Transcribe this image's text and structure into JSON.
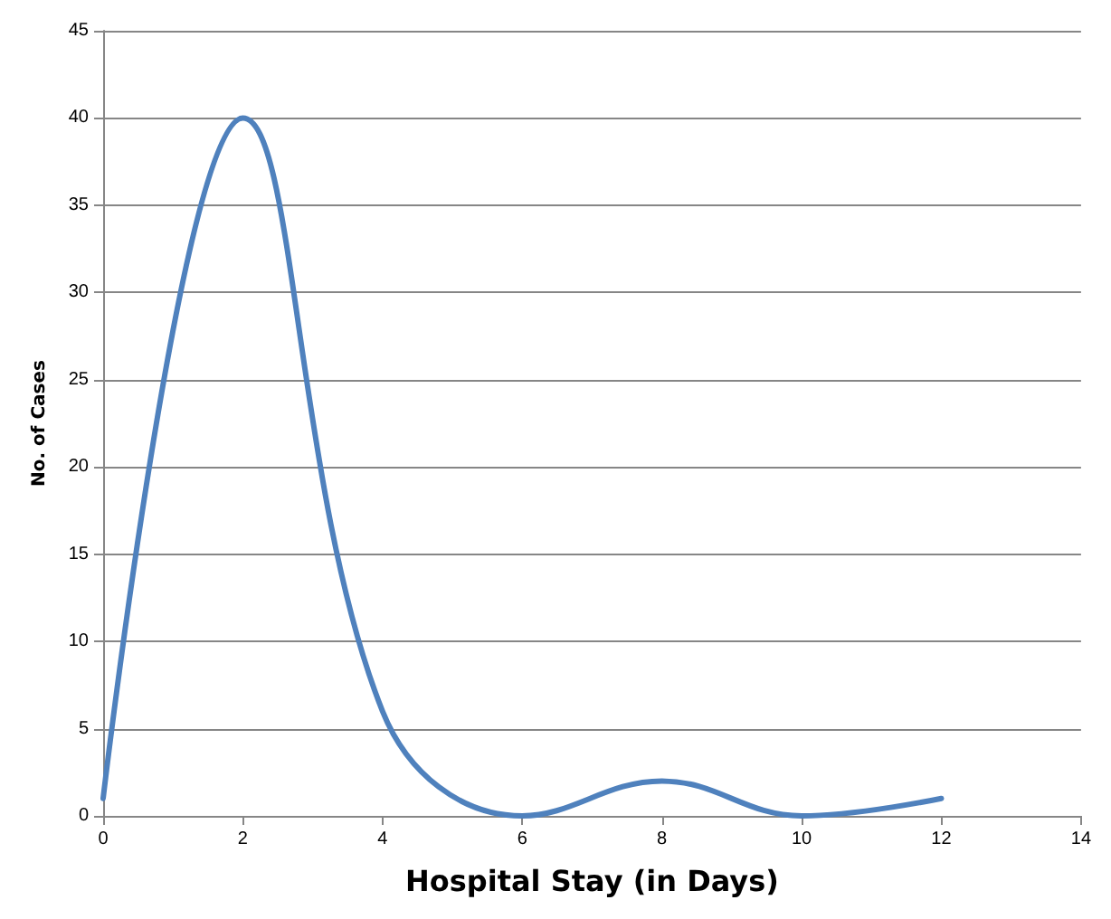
{
  "chart_data": {
    "type": "line",
    "xlabel": "Hospital Stay (in Days)",
    "ylabel": "No. of Cases",
    "x": [
      0,
      2,
      4,
      6,
      8,
      10,
      12
    ],
    "series": [
      {
        "color": "#4f81bd",
        "values": [
          1,
          40,
          6,
          0,
          2,
          0,
          1
        ]
      }
    ],
    "xlim": [
      0,
      14
    ],
    "xticks": [
      0,
      2,
      4,
      6,
      8,
      10,
      12,
      14
    ],
    "ylim": [
      0,
      45
    ],
    "yticks": [
      0,
      5,
      10,
      15,
      20,
      25,
      30,
      35,
      40,
      45
    ],
    "grid": "y",
    "marker": "none",
    "line_style": "solid"
  }
}
